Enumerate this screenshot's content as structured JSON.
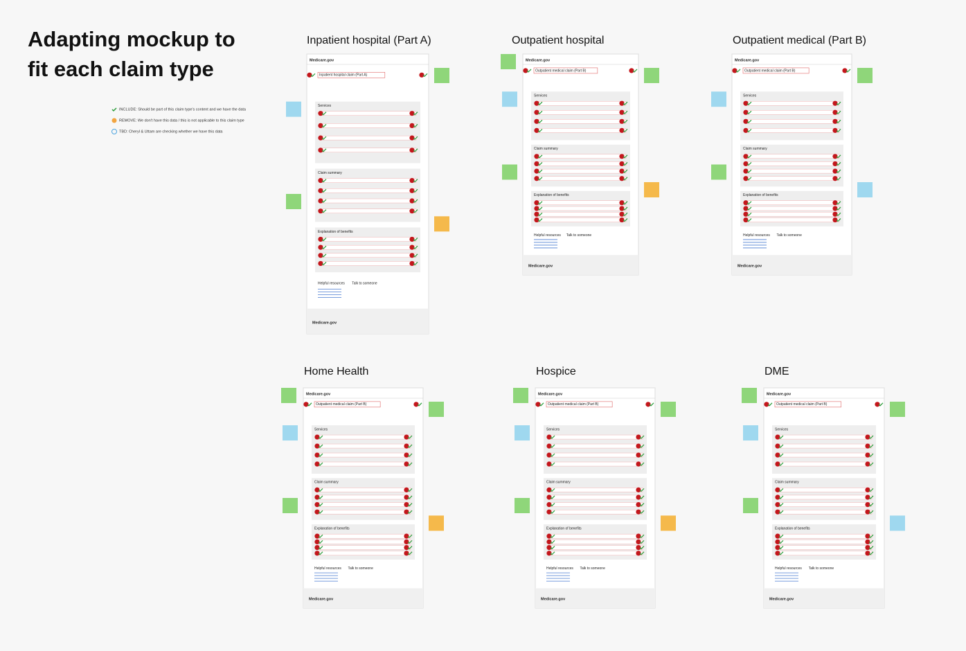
{
  "title_lines": [
    "Adapting mockup to",
    "fit each claim type"
  ],
  "legend": [
    "INCLUDE: Should be part of this claim type's content and we have the data",
    "REMOVE: We don't have this data / this is not applicable to this claim type",
    "TBD: Cheryl & Uttam are checking whether we have this data"
  ],
  "boards": [
    {
      "title": "Inpatient hospital (Part A)",
      "claim_heading": "Inpatient hospital claim (Part A)"
    },
    {
      "title": "Outpatient hospital",
      "claim_heading": "Outpatient medical claim (Part B)"
    },
    {
      "title": "Outpatient medical (Part B)",
      "claim_heading": "Outpatient medical claim (Part B)"
    },
    {
      "title": "Home Health",
      "claim_heading": "Outpatient medical claim (Part B)"
    },
    {
      "title": "Hospice",
      "claim_heading": "Outpatient medical claim (Part B)"
    },
    {
      "title": "DME",
      "claim_heading": "Outpatient medical claim (Part B)"
    }
  ],
  "sections": [
    "Services",
    "Claim summary",
    "Explanation of benefits",
    "Helpful resources",
    "Talk to someone"
  ],
  "brand": "Medicare.gov"
}
